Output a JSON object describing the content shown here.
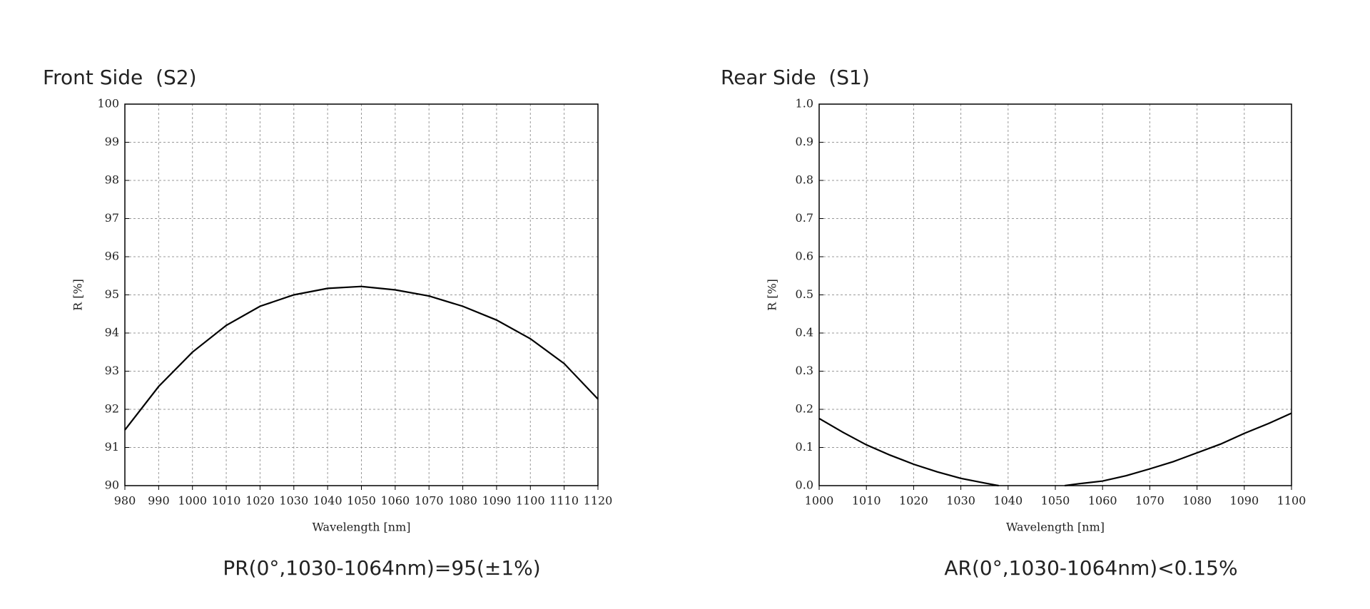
{
  "chart_data": [
    {
      "type": "line",
      "title": "Front Side  (S2)",
      "x_label": "Wavelength [nm]",
      "y_label": "R [%]",
      "annotation": "PR(0°,1030-1064nm)=95(±1%)",
      "x": [
        980,
        990,
        1000,
        1010,
        1020,
        1030,
        1040,
        1050,
        1060,
        1070,
        1080,
        1090,
        1100,
        1110,
        1120
      ],
      "series": [
        {
          "color": "#000000",
          "values": [
            91.46,
            92.6,
            93.5,
            94.2,
            94.7,
            95.0,
            95.17,
            95.22,
            95.13,
            94.97,
            94.7,
            94.34,
            93.85,
            93.2,
            92.27
          ]
        }
      ],
      "xlim": [
        980,
        1120
      ],
      "xticks": [
        980,
        990,
        1000,
        1010,
        1020,
        1030,
        1040,
        1050,
        1060,
        1070,
        1080,
        1090,
        1100,
        1110,
        1120
      ],
      "ylim": [
        90,
        100
      ],
      "yticks": [
        90,
        91,
        92,
        93,
        94,
        95,
        96,
        97,
        98,
        99,
        100
      ],
      "grid": true
    },
    {
      "type": "line",
      "title": "Rear Side  (S1)",
      "x_label": "Wavelength [nm]",
      "y_label": "R [%]",
      "annotation": "AR(0°,1030-1064nm)<0.15%",
      "x": [
        1000,
        1005,
        1010,
        1015,
        1020,
        1025,
        1030,
        1035,
        1038,
        1045,
        1052,
        1055,
        1060,
        1065,
        1070,
        1075,
        1080,
        1085,
        1090,
        1095,
        1100
      ],
      "series": [
        {
          "color": "#000000",
          "values": [
            0.176,
            0.14,
            0.107,
            0.08,
            0.056,
            0.036,
            0.019,
            0.007,
            0,
            null,
            0,
            0.005,
            0.012,
            0.026,
            0.044,
            0.063,
            0.086,
            0.109,
            0.137,
            0.162,
            0.19
          ]
        }
      ],
      "xlim": [
        1000,
        1100
      ],
      "xticks": [
        1000,
        1010,
        1020,
        1030,
        1040,
        1050,
        1060,
        1070,
        1080,
        1090,
        1100
      ],
      "ylim": [
        0,
        1
      ],
      "yticks": [
        {
          "value": 0,
          "label": "0.0"
        },
        0.1,
        0.2,
        0.3,
        0.4,
        0.5,
        0.6,
        0.7,
        0.8,
        0.9,
        {
          "value": 1,
          "label": "1.0"
        }
      ],
      "grid": true
    }
  ]
}
